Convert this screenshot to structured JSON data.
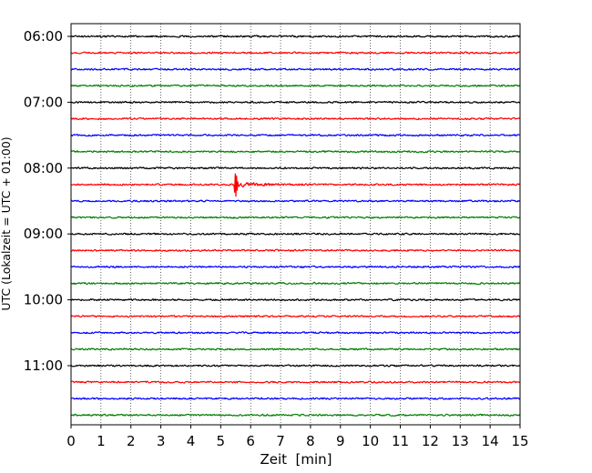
{
  "chart_data": {
    "type": "line",
    "title": "",
    "xlabel": "Zeit  [min]",
    "ylabel": "UTC (Lokalzeit = UTC + 01:00)",
    "xlim": [
      0,
      15
    ],
    "x_ticks": [
      "0",
      "1",
      "2",
      "3",
      "4",
      "5",
      "6",
      "7",
      "8",
      "9",
      "10",
      "11",
      "12",
      "13",
      "14",
      "15"
    ],
    "y_ticks": [
      "06:00",
      "07:00",
      "08:00",
      "09:00",
      "10:00",
      "11:00"
    ],
    "grid": "vertical dotted",
    "trace_interval_min": 15,
    "colors": [
      "#000000",
      "#ff0000",
      "#0000ff",
      "#008000"
    ],
    "traces": [
      {
        "start": "06:00",
        "color": "#000000"
      },
      {
        "start": "06:15",
        "color": "#ff0000"
      },
      {
        "start": "06:30",
        "color": "#0000ff"
      },
      {
        "start": "06:45",
        "color": "#008000"
      },
      {
        "start": "07:00",
        "color": "#000000"
      },
      {
        "start": "07:15",
        "color": "#ff0000"
      },
      {
        "start": "07:30",
        "color": "#0000ff"
      },
      {
        "start": "07:45",
        "color": "#008000"
      },
      {
        "start": "08:00",
        "color": "#000000"
      },
      {
        "start": "08:15",
        "color": "#ff0000",
        "event_at_min": 5.5
      },
      {
        "start": "08:30",
        "color": "#0000ff"
      },
      {
        "start": "08:45",
        "color": "#008000"
      },
      {
        "start": "09:00",
        "color": "#000000"
      },
      {
        "start": "09:15",
        "color": "#ff0000"
      },
      {
        "start": "09:30",
        "color": "#0000ff"
      },
      {
        "start": "09:45",
        "color": "#008000"
      },
      {
        "start": "10:00",
        "color": "#000000"
      },
      {
        "start": "10:15",
        "color": "#ff0000"
      },
      {
        "start": "10:30",
        "color": "#0000ff"
      },
      {
        "start": "10:45",
        "color": "#008000"
      },
      {
        "start": "11:00",
        "color": "#000000"
      },
      {
        "start": "11:15",
        "color": "#ff0000"
      },
      {
        "start": "11:30",
        "color": "#0000ff"
      },
      {
        "start": "11:45",
        "color": "#008000"
      }
    ]
  }
}
